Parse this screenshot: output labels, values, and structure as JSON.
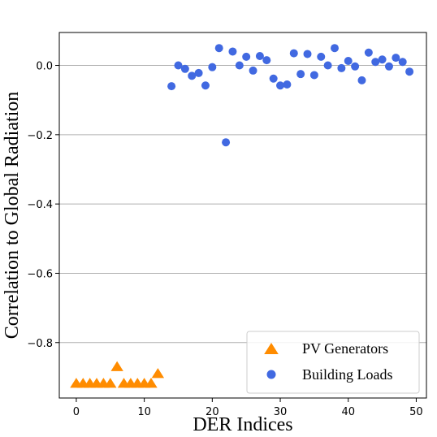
{
  "chart_data": {
    "type": "scatter",
    "title": "",
    "xlabel": "DER Indices",
    "ylabel": "Correlation to Global Radiation",
    "xlim": [
      -2.5,
      51.5
    ],
    "ylim": [
      -0.96,
      0.095
    ],
    "xticks": [
      0,
      10,
      20,
      30,
      40,
      50
    ],
    "xtick_labels": [
      "0",
      "10",
      "20",
      "30",
      "40",
      "50"
    ],
    "yticks": [
      0.0,
      -0.2,
      -0.4,
      -0.6,
      -0.8
    ],
    "ytick_labels": [
      "0.0",
      "−0.2",
      "−0.4",
      "−0.6",
      "−0.8"
    ],
    "grid": "horizontal",
    "legend_position": "lower-right",
    "series": [
      {
        "name": "PV Generators",
        "marker": "triangle",
        "color": "#ff8c00",
        "x": [
          0,
          1,
          2,
          3,
          4,
          5,
          6,
          7,
          8,
          9,
          10,
          11,
          12
        ],
        "y": [
          -0.918,
          -0.918,
          -0.918,
          -0.918,
          -0.918,
          -0.918,
          -0.87,
          -0.918,
          -0.918,
          -0.918,
          -0.918,
          -0.918,
          -0.89
        ]
      },
      {
        "name": "Building Loads",
        "marker": "circle",
        "color": "#4169e1",
        "x": [
          14,
          15,
          16,
          17,
          18,
          19,
          20,
          21,
          22,
          23,
          24,
          25,
          26,
          27,
          28,
          29,
          30,
          31,
          32,
          33,
          34,
          35,
          36,
          37,
          38,
          39,
          40,
          41,
          42,
          43,
          44,
          45,
          46,
          47,
          48,
          49
        ],
        "y": [
          -0.06,
          0.0,
          -0.01,
          -0.03,
          -0.022,
          -0.058,
          -0.005,
          0.05,
          -0.222,
          0.04,
          0.0,
          0.025,
          -0.015,
          0.027,
          0.015,
          -0.038,
          -0.058,
          -0.055,
          0.035,
          -0.025,
          0.033,
          -0.028,
          0.025,
          0.0,
          0.05,
          -0.008,
          0.013,
          -0.003,
          -0.043,
          0.037,
          0.01,
          0.017,
          -0.003,
          0.022,
          0.01,
          -0.018
        ]
      }
    ]
  }
}
